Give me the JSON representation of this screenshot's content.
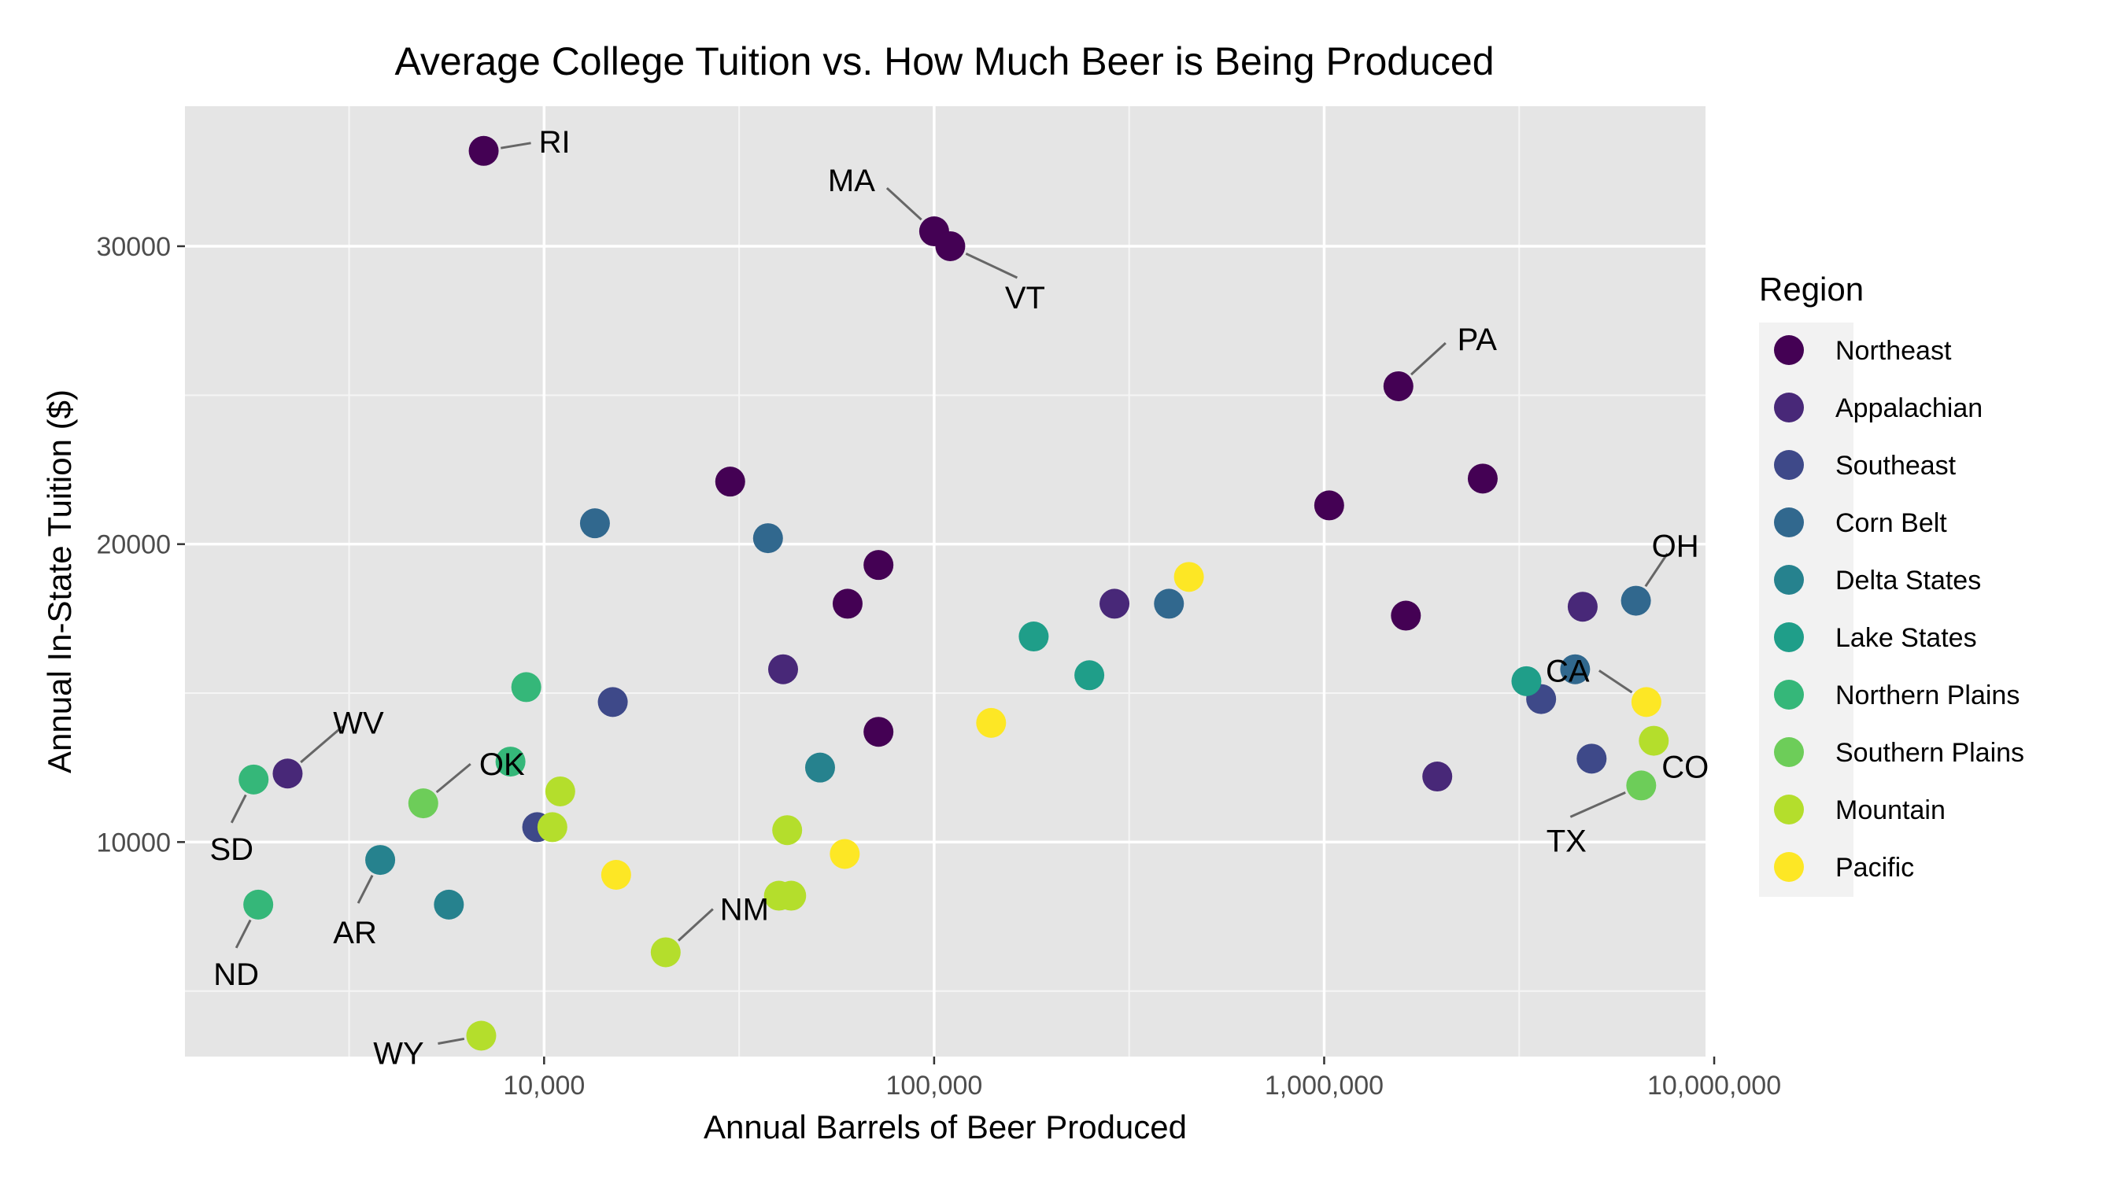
{
  "chart_data": {
    "type": "scatter",
    "title": "Average College Tuition vs. How Much Beer is Being Produced",
    "xlabel": "Annual Barrels of Beer Produced",
    "ylabel": "Annual In-State Tuition ($)",
    "x_scale": "log10",
    "xlim": [
      1200,
      9500000
    ],
    "ylim": [
      2800,
      34700
    ],
    "x_ticks": [
      {
        "value": 10000,
        "label": "10,000"
      },
      {
        "value": 100000,
        "label": "100,000"
      },
      {
        "value": 1000000,
        "label": "1,000,000"
      },
      {
        "value": 10000000,
        "label": "10,000,000"
      }
    ],
    "y_ticks": [
      {
        "value": 10000,
        "label": "10000"
      },
      {
        "value": 20000,
        "label": "20000"
      },
      {
        "value": 30000,
        "label": "30000"
      }
    ],
    "grid": true,
    "legend_title": "Region",
    "legend_position": "right",
    "series": [
      {
        "name": "Northeast",
        "color": "#440154",
        "points": [
          {
            "x": 7000,
            "y": 33200,
            "label": "RI"
          },
          {
            "x": 100000,
            "y": 30500,
            "label": "MA"
          },
          {
            "x": 110000,
            "y": 30000,
            "label": "VT"
          },
          {
            "x": 1550000,
            "y": 25300,
            "label": "PA"
          },
          {
            "x": 30000,
            "y": 22100
          },
          {
            "x": 2550000,
            "y": 22200
          },
          {
            "x": 1030000,
            "y": 21300
          },
          {
            "x": 72000,
            "y": 19300
          },
          {
            "x": 60000,
            "y": 18000
          },
          {
            "x": 1620000,
            "y": 17600
          },
          {
            "x": 72000,
            "y": 13700
          }
        ]
      },
      {
        "name": "Appalachian",
        "color": "#482878",
        "points": [
          {
            "x": 2200,
            "y": 12300,
            "label": "WV"
          },
          {
            "x": 290000,
            "y": 18000
          },
          {
            "x": 4600000,
            "y": 17900
          },
          {
            "x": 41000,
            "y": 15800
          },
          {
            "x": 1950000,
            "y": 12200
          }
        ]
      },
      {
        "name": "Southeast",
        "color": "#3E4989",
        "points": [
          {
            "x": 15000,
            "y": 14700
          },
          {
            "x": 9600,
            "y": 10500
          },
          {
            "x": 3600000,
            "y": 14800
          },
          {
            "x": 4850000,
            "y": 12800
          }
        ]
      },
      {
        "name": "Corn Belt",
        "color": "#31688E",
        "points": [
          {
            "x": 6300000,
            "y": 18100,
            "label": "OH"
          },
          {
            "x": 13500,
            "y": 20700
          },
          {
            "x": 37500,
            "y": 20200
          },
          {
            "x": 400000,
            "y": 18000
          },
          {
            "x": 4400000,
            "y": 15800
          }
        ]
      },
      {
        "name": "Delta States",
        "color": "#26828E",
        "points": [
          {
            "x": 3800,
            "y": 9400,
            "label": "AR"
          },
          {
            "x": 5700,
            "y": 7900
          },
          {
            "x": 51000,
            "y": 12500
          }
        ]
      },
      {
        "name": "Lake States",
        "color": "#1F9E89",
        "points": [
          {
            "x": 180000,
            "y": 16900
          },
          {
            "x": 250000,
            "y": 15600
          },
          {
            "x": 3300000,
            "y": 15400
          }
        ]
      },
      {
        "name": "Northern Plains",
        "color": "#35B779",
        "points": [
          {
            "x": 1800,
            "y": 12100,
            "label": "SD"
          },
          {
            "x": 1850,
            "y": 7900,
            "label": "ND"
          },
          {
            "x": 9000,
            "y": 15200
          },
          {
            "x": 8200,
            "y": 12700
          }
        ]
      },
      {
        "name": "Southern Plains",
        "color": "#6DCD59",
        "points": [
          {
            "x": 4900,
            "y": 11300,
            "label": "OK"
          },
          {
            "x": 6500000,
            "y": 11900,
            "label": "TX"
          }
        ]
      },
      {
        "name": "Mountain",
        "color": "#B4DE2C",
        "points": [
          {
            "x": 6900,
            "y": 3500,
            "label": "WY"
          },
          {
            "x": 20500,
            "y": 6300,
            "label": "NM"
          },
          {
            "x": 7000000,
            "y": 13400,
            "label": "CO"
          },
          {
            "x": 11000,
            "y": 11700
          },
          {
            "x": 10500,
            "y": 10500
          },
          {
            "x": 42000,
            "y": 10400
          },
          {
            "x": 40000,
            "y": 8200
          },
          {
            "x": 43000,
            "y": 8200
          }
        ]
      },
      {
        "name": "Pacific",
        "color": "#FDE725",
        "points": [
          {
            "x": 6700000,
            "y": 14700,
            "label": "CA"
          },
          {
            "x": 450000,
            "y": 18900
          },
          {
            "x": 140000,
            "y": 14000
          },
          {
            "x": 59000,
            "y": 9600
          },
          {
            "x": 15300,
            "y": 8900
          }
        ]
      }
    ]
  }
}
